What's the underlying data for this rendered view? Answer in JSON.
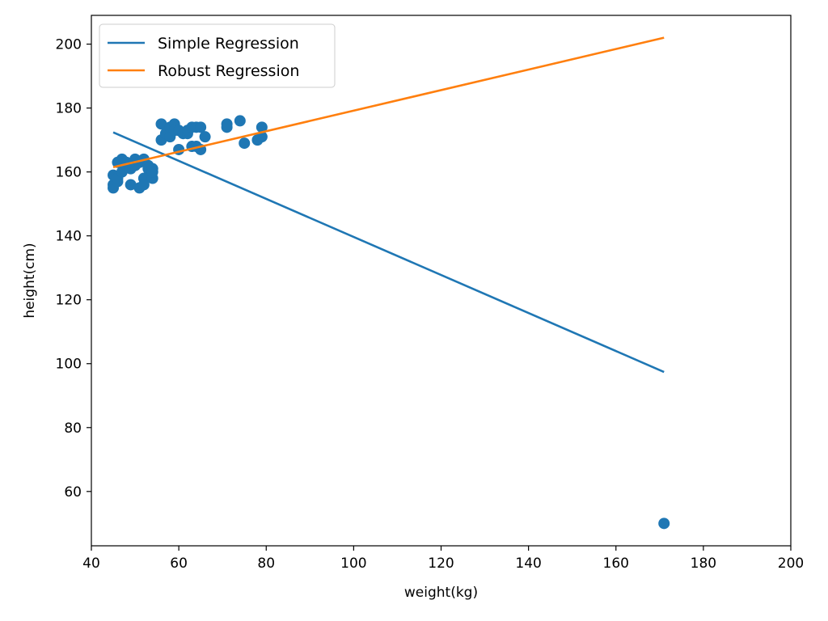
{
  "chart_data": {
    "type": "scatter",
    "title": "",
    "xlabel": "weight(kg)",
    "ylabel": "height(cm)",
    "xlim": [
      40,
      200
    ],
    "ylim": [
      43,
      209
    ],
    "x_ticks": [
      40,
      60,
      80,
      100,
      120,
      140,
      160,
      180,
      200
    ],
    "y_ticks": [
      60,
      80,
      100,
      120,
      140,
      160,
      180,
      200
    ],
    "grid": false,
    "legend_position": "top-left",
    "scatter_color": "#1f77b4",
    "series": [
      {
        "name": "Simple Regression",
        "type": "line",
        "color": "#1f77b4",
        "x": [
          45,
          171
        ],
        "y": [
          172.4,
          97.4
        ]
      },
      {
        "name": "Robust Regression",
        "type": "line",
        "color": "#ff7f0e",
        "x": [
          45,
          171
        ],
        "y": [
          161.5,
          202.0
        ]
      }
    ],
    "points": {
      "x": [
        45,
        45,
        45,
        46,
        46,
        46,
        47,
        47,
        48,
        48,
        49,
        49,
        50,
        50,
        51,
        51,
        52,
        52,
        52,
        53,
        53,
        54,
        54,
        54,
        56,
        56,
        57,
        58,
        58,
        59,
        59,
        60,
        60,
        61,
        62,
        62,
        63,
        63,
        64,
        64,
        65,
        65,
        66,
        71,
        71,
        74,
        75,
        78,
        79,
        79,
        171
      ],
      "y": [
        159,
        156,
        155,
        157,
        163,
        158,
        164,
        160,
        163,
        162,
        156,
        161,
        164,
        162,
        163,
        155,
        158,
        164,
        156,
        162,
        161,
        161,
        158,
        160,
        175,
        170,
        172,
        171,
        174,
        175,
        173,
        167,
        173,
        172,
        172,
        173,
        168,
        174,
        168,
        174,
        167,
        174,
        171,
        175,
        174,
        176,
        169,
        170,
        174,
        171,
        50
      ]
    }
  }
}
